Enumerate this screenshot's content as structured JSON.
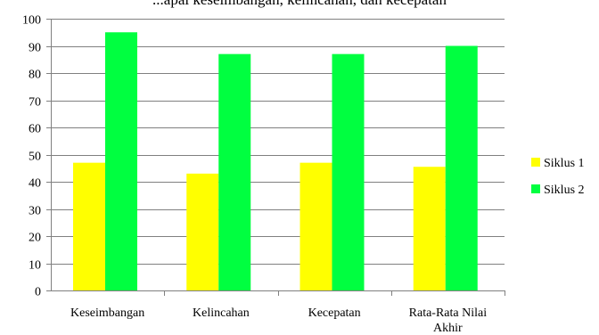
{
  "caption_fragment": "...apai keseimbangan, kelincahan, dan kecepatan",
  "chart_data": {
    "type": "bar",
    "title": "",
    "xlabel": "",
    "ylabel": "",
    "ylim": [
      0,
      100
    ],
    "ytick_step": 10,
    "yticks": [
      "0",
      "10",
      "20",
      "30",
      "40",
      "50",
      "60",
      "70",
      "80",
      "90",
      "100"
    ],
    "grid": true,
    "legend_position": "right",
    "categories": [
      "Keseimbangan",
      "Kelincahan",
      "Kecepatan",
      "Rata-Rata Nilai Akhir"
    ],
    "series": [
      {
        "name": "Siklus 1",
        "color": "#ffff00",
        "values": [
          47,
          43,
          47,
          45.5
        ]
      },
      {
        "name": "Siklus 2",
        "color": "#00ff40",
        "values": [
          95,
          87,
          87,
          90
        ]
      }
    ]
  }
}
